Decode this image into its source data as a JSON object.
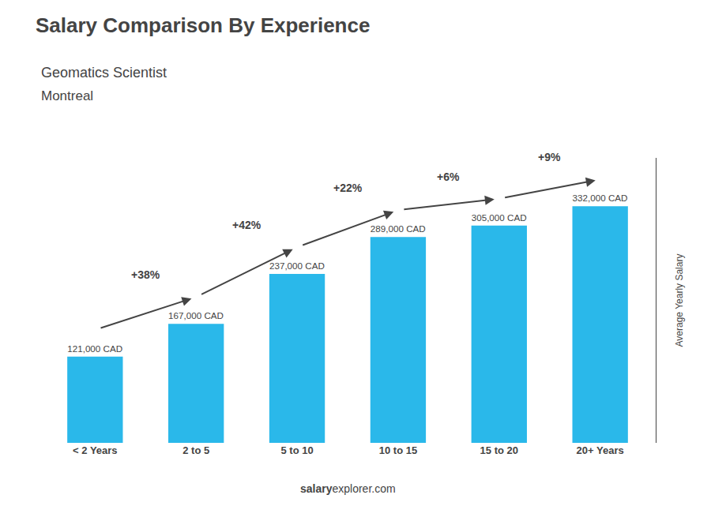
{
  "chart_data": {
    "type": "bar",
    "title": "Salary Comparison By Experience",
    "subtitle": [
      "Geomatics Scientist",
      "Montreal"
    ],
    "ylabel": "Average Yearly Salary",
    "footer": [
      "salary",
      "explorer.com"
    ],
    "categories": [
      "< 2 Years",
      "2 to 5",
      "5 to 10",
      "10 to 15",
      "15 to 20",
      "20+ Years"
    ],
    "values": [
      121000,
      167000,
      237000,
      289000,
      305000,
      332000
    ],
    "value_labels": [
      "121,000 CAD",
      "167,000 CAD",
      "237,000 CAD",
      "289,000 CAD",
      "305,000 CAD",
      "332,000 CAD"
    ],
    "changes": [
      38,
      42,
      22,
      6,
      9
    ],
    "change_labels": [
      "+38%",
      "+42%",
      "+22%",
      "+6%",
      "+9%"
    ],
    "color": "#2ab8ea",
    "ylim": [
      0,
      400000
    ],
    "data_labels": true,
    "tick_labels": "x",
    "grid": false
  }
}
